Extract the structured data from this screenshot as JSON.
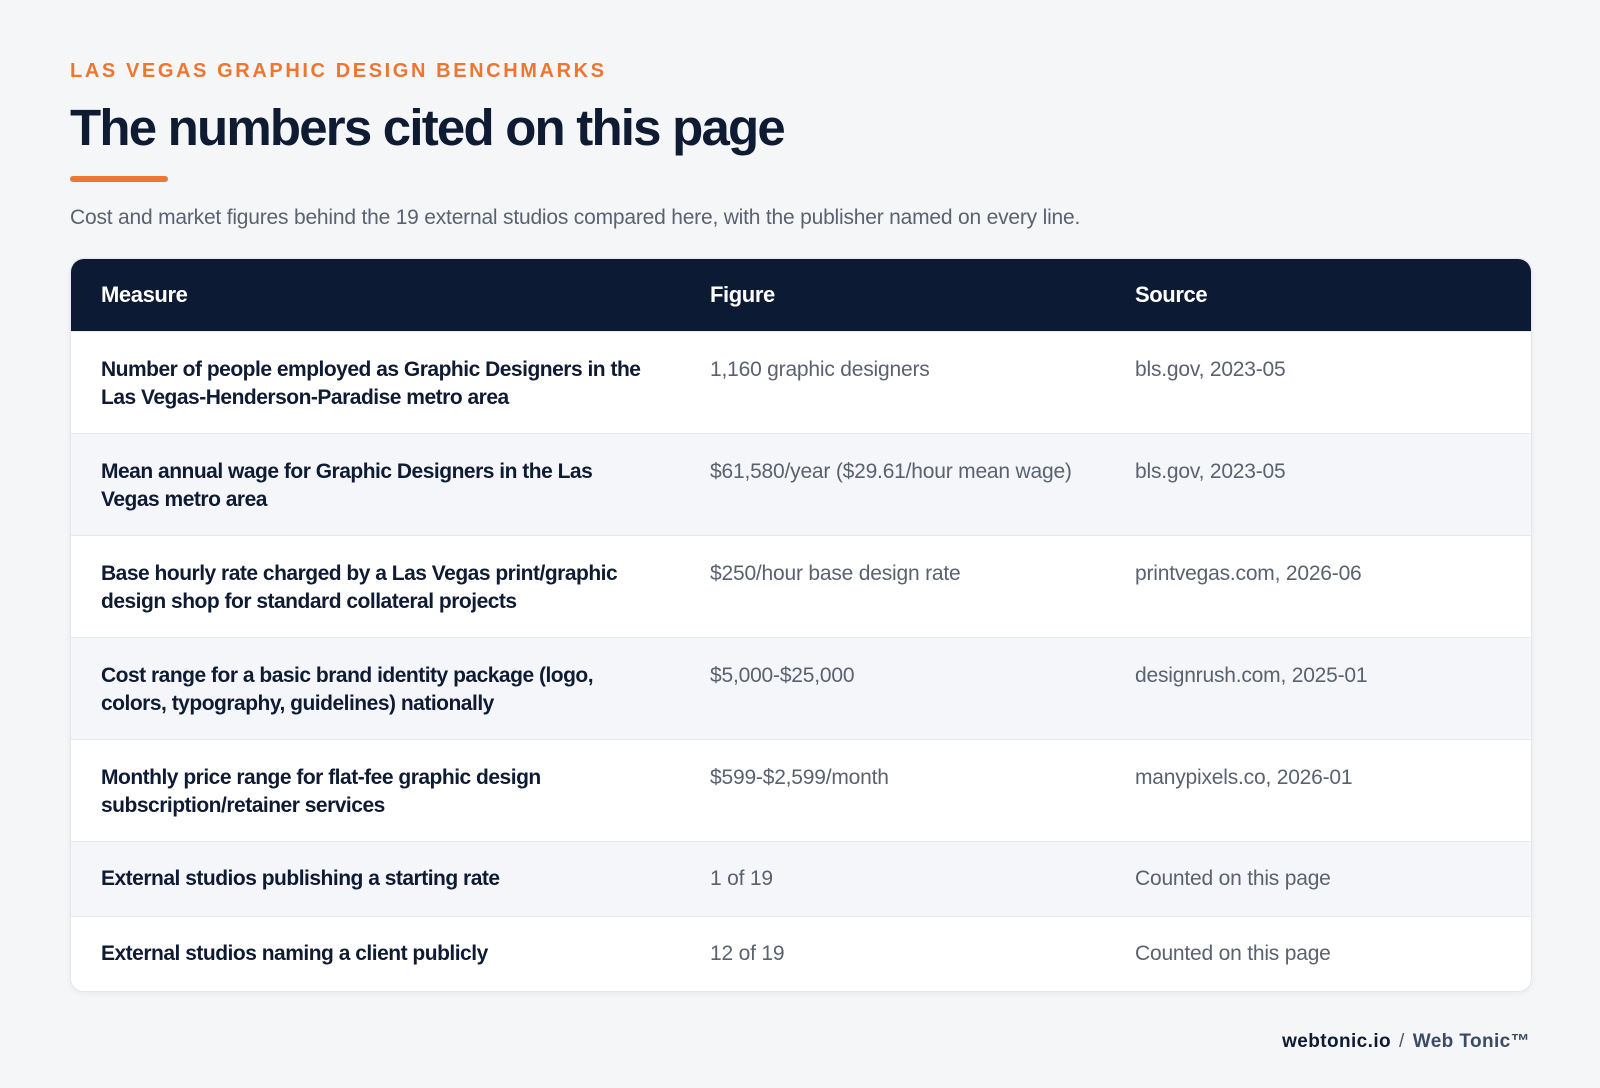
{
  "header": {
    "eyebrow": "LAS VEGAS GRAPHIC DESIGN BENCHMARKS",
    "title": "The numbers cited on this page",
    "subtitle": "Cost and market figures behind the 19 external studios compared here, with the publisher named on every line."
  },
  "table": {
    "columns": [
      "Measure",
      "Figure",
      "Source"
    ],
    "rows": [
      {
        "measure": "Number of people employed as Graphic Designers in the Las Vegas-Henderson-Paradise metro area",
        "figure": "1,160 graphic designers",
        "source": "bls.gov, 2023-05"
      },
      {
        "measure": "Mean annual wage for Graphic Designers in the Las Vegas metro area",
        "figure": "$61,580/year ($29.61/hour mean wage)",
        "source": "bls.gov, 2023-05"
      },
      {
        "measure": "Base hourly rate charged by a Las Vegas print/graphic design shop for standard collateral projects",
        "figure": "$250/hour base design rate",
        "source": "printvegas.com, 2026-06"
      },
      {
        "measure": "Cost range for a basic brand identity package (logo, colors, typography, guidelines) nationally",
        "figure": "$5,000-$25,000",
        "source": "designrush.com, 2025-01"
      },
      {
        "measure": "Monthly price range for flat-fee graphic design subscription/retainer services",
        "figure": "$599-$2,599/month",
        "source": "manypixels.co, 2026-01"
      },
      {
        "measure": "External studios publishing a starting rate",
        "figure": "1 of 19",
        "source": "Counted on this page"
      },
      {
        "measure": "External studios naming a client publicly",
        "figure": "12 of 19",
        "source": "Counted on this page"
      }
    ]
  },
  "footer": {
    "domain": "webtonic.io",
    "separator": "/",
    "brand": "Web Tonic™"
  },
  "colors": {
    "accent": "#ee7630",
    "header_bg": "#0c1a33",
    "text_dark": "#0f1b33",
    "text_muted": "#5a6270",
    "page_bg": "#f5f6f8"
  }
}
